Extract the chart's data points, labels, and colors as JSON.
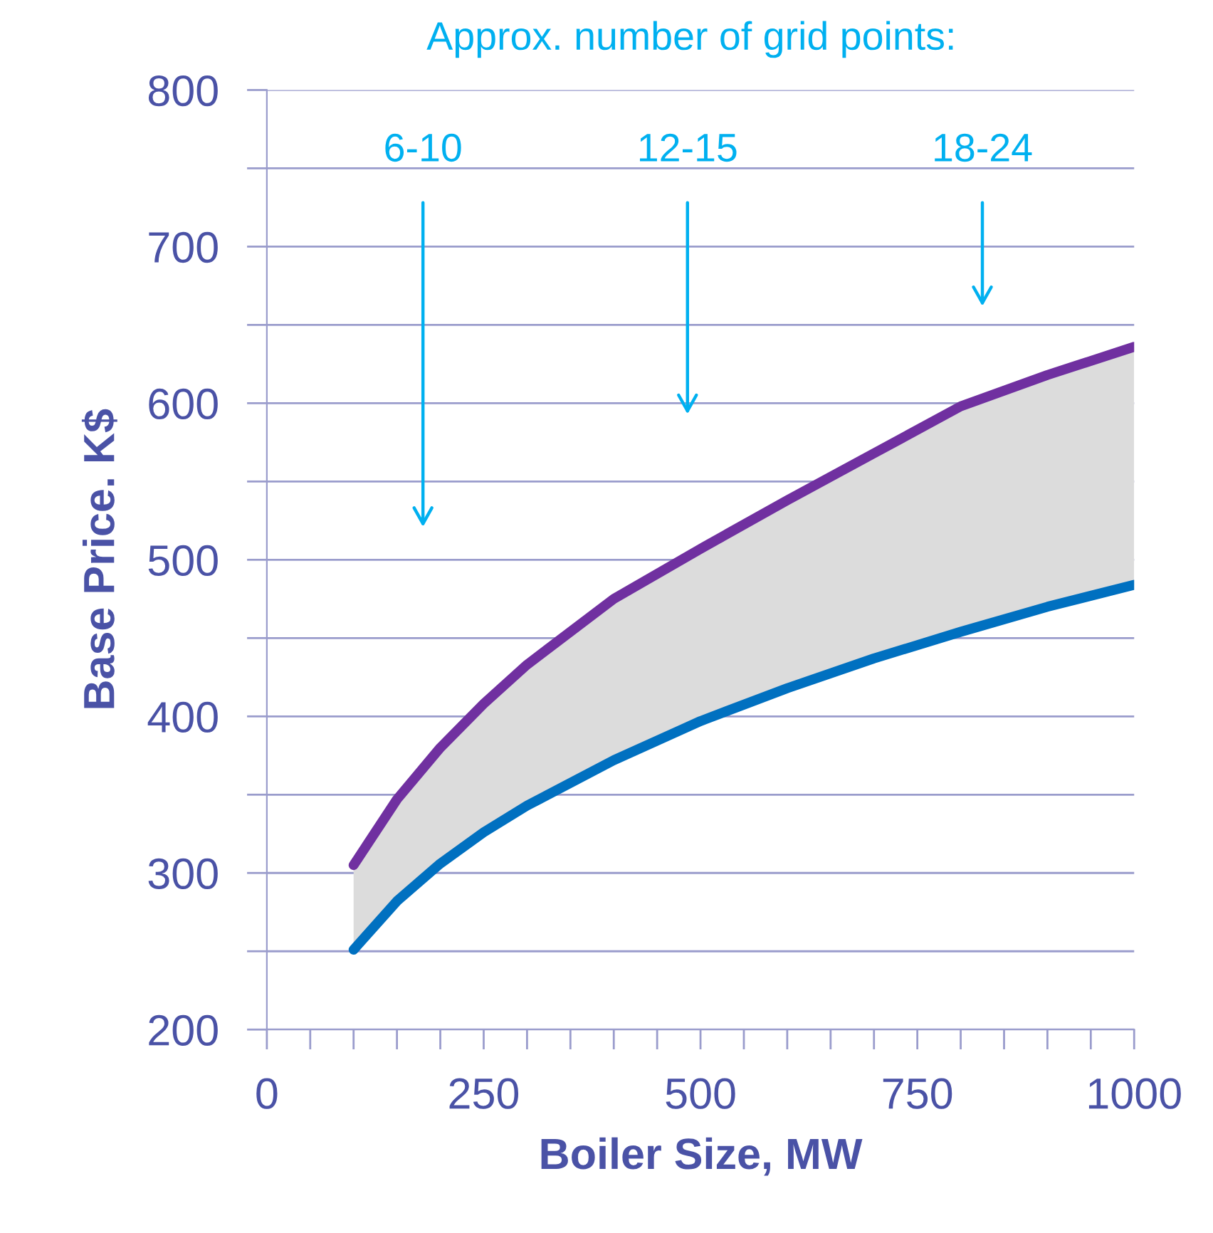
{
  "chart_data": {
    "type": "line",
    "title": "Approx. number of grid points:",
    "xlabel": "Boiler Size, MW",
    "ylabel": "Base Price. K$",
    "x": [
      100,
      150,
      200,
      250,
      300,
      400,
      500,
      600,
      700,
      800,
      900,
      1000
    ],
    "series": [
      {
        "color": "#0070c0",
        "values": [
          251,
          282,
          306,
          326,
          343,
          372,
          397,
          418,
          437,
          454,
          470,
          484
        ]
      },
      {
        "type": "area",
        "color": "#7030a0",
        "values": [
          305,
          347,
          380,
          408,
          433,
          475,
          507,
          538,
          568,
          598,
          618,
          636
        ]
      }
    ],
    "annotations": [
      "6-10",
      "12-15",
      "18-24"
    ],
    "xlim": [
      0,
      1000
    ],
    "ylim": [
      200,
      800
    ],
    "xticks": [
      0,
      {
        "value": 50,
        "label": null
      },
      {
        "value": 100,
        "label": null
      },
      {
        "value": 150,
        "label": null
      },
      {
        "value": 200,
        "label": null
      },
      250,
      {
        "value": 300,
        "label": null
      },
      {
        "value": 350,
        "label": null
      },
      {
        "value": 400,
        "label": null
      },
      {
        "value": 450,
        "label": null
      },
      500,
      {
        "value": 550,
        "label": null
      },
      {
        "value": 600,
        "label": null
      },
      {
        "value": 650,
        "label": null
      },
      {
        "value": 700,
        "label": null
      },
      750,
      {
        "value": 800,
        "label": null
      },
      {
        "value": 850,
        "label": null
      },
      {
        "value": 900,
        "label": null
      },
      {
        "value": 950,
        "label": null
      },
      1000
    ],
    "yticks": [
      200,
      {
        "value": 250,
        "label": null
      },
      300,
      {
        "value": 350,
        "label": null
      },
      400,
      {
        "value": 450,
        "label": null
      },
      500,
      {
        "value": 550,
        "label": null
      },
      600,
      {
        "value": 650,
        "label": null
      },
      700,
      {
        "value": 750,
        "label": null
      },
      800
    ],
    "grid": "y",
    "legend": false,
    "marker": "none",
    "line_style": "solid"
  }
}
